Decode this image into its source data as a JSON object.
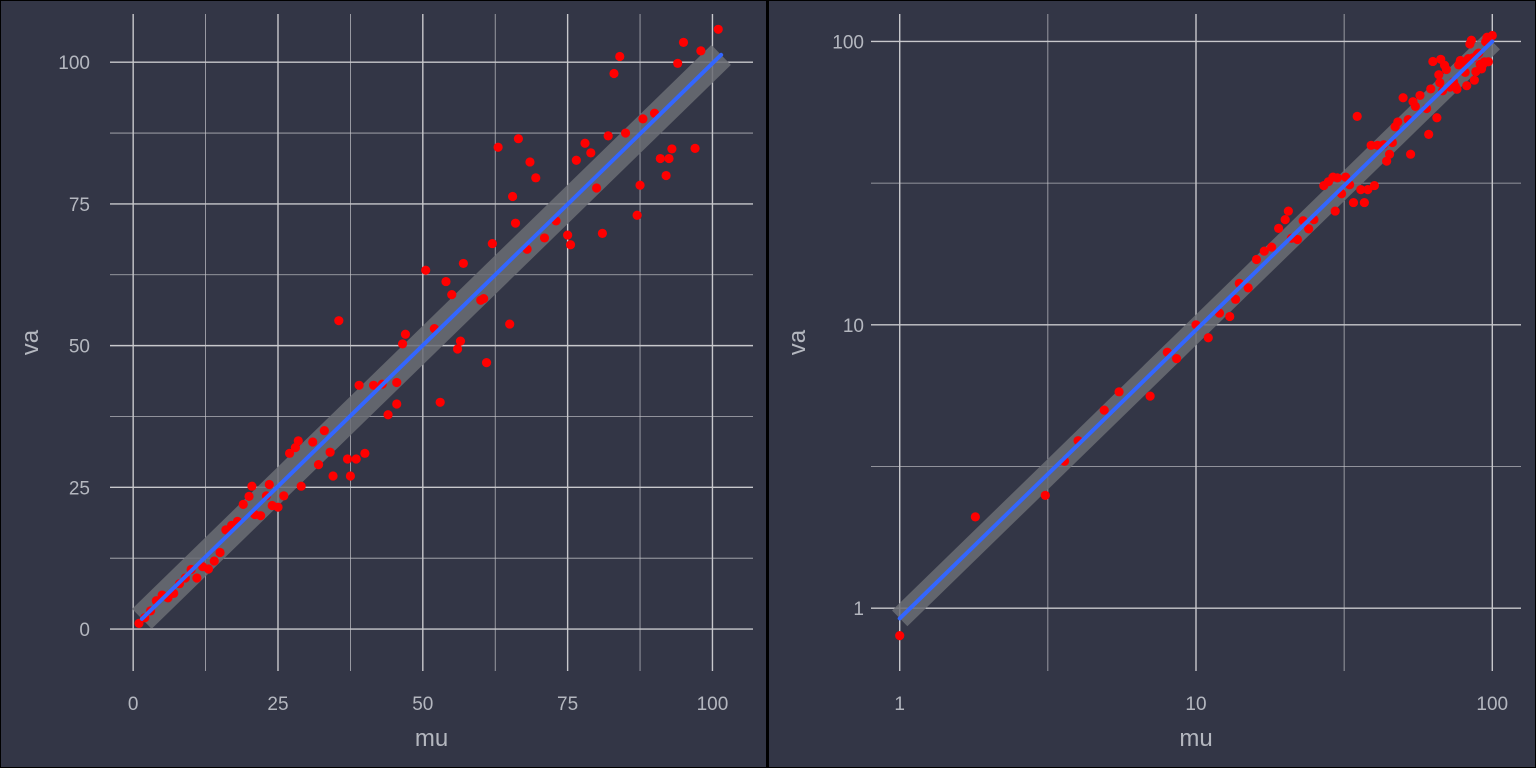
{
  "chart_data": [
    {
      "type": "scatter",
      "panel": "left",
      "xscale": "linear",
      "yscale": "linear",
      "xlabel": "mu",
      "ylabel": "va",
      "xlim": [
        -4,
        107
      ],
      "ylim": [
        -7.4,
        108.5
      ],
      "xticks": [
        0,
        25,
        50,
        75,
        100
      ],
      "xtick_labels": [
        "0",
        "25",
        "50",
        "75",
        "100"
      ],
      "x_minor": [
        12.5,
        37.5,
        62.5,
        87.5
      ],
      "yticks": [
        0,
        25,
        50,
        75,
        100
      ],
      "ytick_labels": [
        "0",
        "25",
        "50",
        "75",
        "100"
      ],
      "y_minor": [
        12.5,
        37.5,
        62.5,
        87.5
      ],
      "grid": true,
      "background": "#333646",
      "grid_color": "#c8c8cc",
      "point_color": "#ff0000",
      "fit_color": "#3366ff",
      "band_color": "#6b6d74",
      "fit": {
        "x0": 1.5,
        "x1": 101.5,
        "slope": 0.995,
        "intercept": 0.3,
        "band": 1.8
      },
      "points": [
        [
          1,
          1
        ],
        [
          2,
          2
        ],
        [
          3,
          3.2
        ],
        [
          4,
          5
        ],
        [
          5,
          6
        ],
        [
          6,
          5.5
        ],
        [
          7,
          6.3
        ],
        [
          8,
          8
        ],
        [
          9,
          9
        ],
        [
          10,
          10.5
        ],
        [
          11,
          9
        ],
        [
          12,
          11
        ],
        [
          13,
          10.6
        ],
        [
          14,
          12
        ],
        [
          15,
          13.5
        ],
        [
          16,
          17.5
        ],
        [
          17,
          18.3
        ],
        [
          18,
          19
        ],
        [
          19,
          22
        ],
        [
          20,
          23.4
        ],
        [
          20.5,
          25.2
        ],
        [
          21,
          20.2
        ],
        [
          22,
          20
        ],
        [
          23,
          23.5
        ],
        [
          23.5,
          25.5
        ],
        [
          24,
          21.8
        ],
        [
          25,
          21.5
        ],
        [
          26,
          23.5
        ],
        [
          27,
          31
        ],
        [
          28,
          32
        ],
        [
          28.5,
          33.2
        ],
        [
          29,
          25.2
        ],
        [
          31,
          33
        ],
        [
          32,
          29
        ],
        [
          33,
          35
        ],
        [
          34,
          31.2
        ],
        [
          34.5,
          27
        ],
        [
          35.5,
          54.4
        ],
        [
          37,
          30
        ],
        [
          37.5,
          27
        ],
        [
          38.5,
          30
        ],
        [
          39,
          43
        ],
        [
          40,
          31
        ],
        [
          41.5,
          43
        ],
        [
          43,
          43.2
        ],
        [
          44,
          37.8
        ],
        [
          45.5,
          39.7
        ],
        [
          45.5,
          43.5
        ],
        [
          46.5,
          50.3
        ],
        [
          47,
          52
        ],
        [
          50.5,
          63.3
        ],
        [
          52,
          53
        ],
        [
          53,
          40
        ],
        [
          54,
          61.3
        ],
        [
          55,
          59
        ],
        [
          56,
          49.4
        ],
        [
          56.5,
          50.8
        ],
        [
          57,
          64.5
        ],
        [
          60,
          58
        ],
        [
          60.5,
          58.3
        ],
        [
          61,
          47
        ],
        [
          62,
          68
        ],
        [
          63,
          85
        ],
        [
          65,
          53.8
        ],
        [
          65.5,
          76.3
        ],
        [
          66,
          71.6
        ],
        [
          66.5,
          86.5
        ],
        [
          68,
          67
        ],
        [
          68.5,
          82.4
        ],
        [
          69.5,
          79.6
        ],
        [
          71,
          69
        ],
        [
          73,
          72
        ],
        [
          75,
          69.5
        ],
        [
          75.5,
          67.8
        ],
        [
          76.5,
          82.7
        ],
        [
          78,
          85.7
        ],
        [
          79,
          84
        ],
        [
          80,
          77.8
        ],
        [
          81,
          69.8
        ],
        [
          82,
          87
        ],
        [
          83,
          98
        ],
        [
          84,
          101
        ],
        [
          85,
          87.5
        ],
        [
          87,
          73
        ],
        [
          87.5,
          78.3
        ],
        [
          88,
          90
        ],
        [
          90,
          91
        ],
        [
          91,
          83
        ],
        [
          92,
          80
        ],
        [
          92.5,
          83
        ],
        [
          93,
          84.7
        ],
        [
          94,
          99.8
        ],
        [
          95,
          103.5
        ],
        [
          97,
          84.8
        ],
        [
          98,
          102
        ],
        [
          101,
          105.8
        ]
      ]
    },
    {
      "type": "scatter",
      "panel": "right",
      "xscale": "log10",
      "yscale": "log10",
      "xlabel": "mu",
      "ylabel": "va",
      "xlim": [
        0.8,
        125
      ],
      "ylim": [
        0.6,
        125
      ],
      "xticks": [
        1,
        10,
        100
      ],
      "xtick_labels": [
        "1",
        "10",
        "100"
      ],
      "x_minor": [
        3.162,
        31.62
      ],
      "yticks": [
        1,
        10,
        100
      ],
      "ytick_labels": [
        "1",
        "10",
        "100"
      ],
      "y_minor": [
        3.162,
        31.62
      ],
      "grid": true,
      "background": "#333646",
      "grid_color": "#c8c8cc",
      "point_color": "#ff0000",
      "fit_color": "#3366ff",
      "band_color": "#6b6d74",
      "fit": {
        "x0": 1,
        "x1": 100,
        "y0": 0.92,
        "y1": 100
      },
      "points": [
        [
          1,
          0.8
        ],
        [
          1.8,
          2.1
        ],
        [
          3.1,
          2.5
        ],
        [
          3.6,
          3.3
        ],
        [
          4,
          3.9
        ],
        [
          4.9,
          5.0
        ],
        [
          5.5,
          5.8
        ],
        [
          7,
          5.6
        ],
        [
          8,
          8
        ],
        [
          8.6,
          7.6
        ],
        [
          10,
          10
        ],
        [
          11,
          9
        ],
        [
          12,
          11
        ],
        [
          13,
          10.7
        ],
        [
          13.6,
          12.3
        ],
        [
          14,
          14
        ],
        [
          15,
          13.5
        ],
        [
          16,
          17
        ],
        [
          17,
          18.2
        ],
        [
          18,
          18.8
        ],
        [
          19,
          21.9
        ],
        [
          20,
          23.5
        ],
        [
          20.5,
          25.2
        ],
        [
          21,
          20.2
        ],
        [
          22,
          20
        ],
        [
          23,
          23.3
        ],
        [
          24,
          21.8
        ],
        [
          25,
          23.5
        ],
        [
          27,
          31
        ],
        [
          28,
          32
        ],
        [
          29,
          33.2
        ],
        [
          29.5,
          25.2
        ],
        [
          30,
          33
        ],
        [
          31,
          29
        ],
        [
          32,
          33.2
        ],
        [
          33,
          31.2
        ],
        [
          34,
          27
        ],
        [
          35,
          54.4
        ],
        [
          36,
          30
        ],
        [
          37,
          27
        ],
        [
          38,
          30
        ],
        [
          39,
          43
        ],
        [
          40,
          31
        ],
        [
          41,
          43
        ],
        [
          43,
          43.2
        ],
        [
          44,
          37.8
        ],
        [
          45,
          40
        ],
        [
          46,
          44
        ],
        [
          47,
          50
        ],
        [
          48,
          52
        ],
        [
          50,
          63.3
        ],
        [
          52,
          53
        ],
        [
          53,
          40
        ],
        [
          54,
          61.3
        ],
        [
          55,
          59
        ],
        [
          57,
          64.5
        ],
        [
          60,
          58
        ],
        [
          61,
          47
        ],
        [
          62,
          68
        ],
        [
          63,
          85
        ],
        [
          65,
          53.8
        ],
        [
          66,
          76.3
        ],
        [
          66.5,
          71.6
        ],
        [
          67,
          86.5
        ],
        [
          68,
          67
        ],
        [
          69,
          82.4
        ],
        [
          70,
          79.6
        ],
        [
          72,
          69
        ],
        [
          74,
          72
        ],
        [
          75,
          69.5
        ],
        [
          76,
          67.8
        ],
        [
          77,
          82.7
        ],
        [
          78,
          85.7
        ],
        [
          80,
          84
        ],
        [
          81,
          77.8
        ],
        [
          82,
          69.8
        ],
        [
          83,
          87
        ],
        [
          84,
          98
        ],
        [
          85,
          101
        ],
        [
          86,
          87.5
        ],
        [
          87,
          73
        ],
        [
          88,
          78.3
        ],
        [
          89,
          90
        ],
        [
          90,
          91
        ],
        [
          91,
          83
        ],
        [
          92,
          80
        ],
        [
          93,
          83
        ],
        [
          94,
          84.7
        ],
        [
          95,
          99.8
        ],
        [
          96,
          103.5
        ],
        [
          97,
          84.8
        ],
        [
          98,
          102
        ],
        [
          100,
          105
        ]
      ]
    }
  ]
}
